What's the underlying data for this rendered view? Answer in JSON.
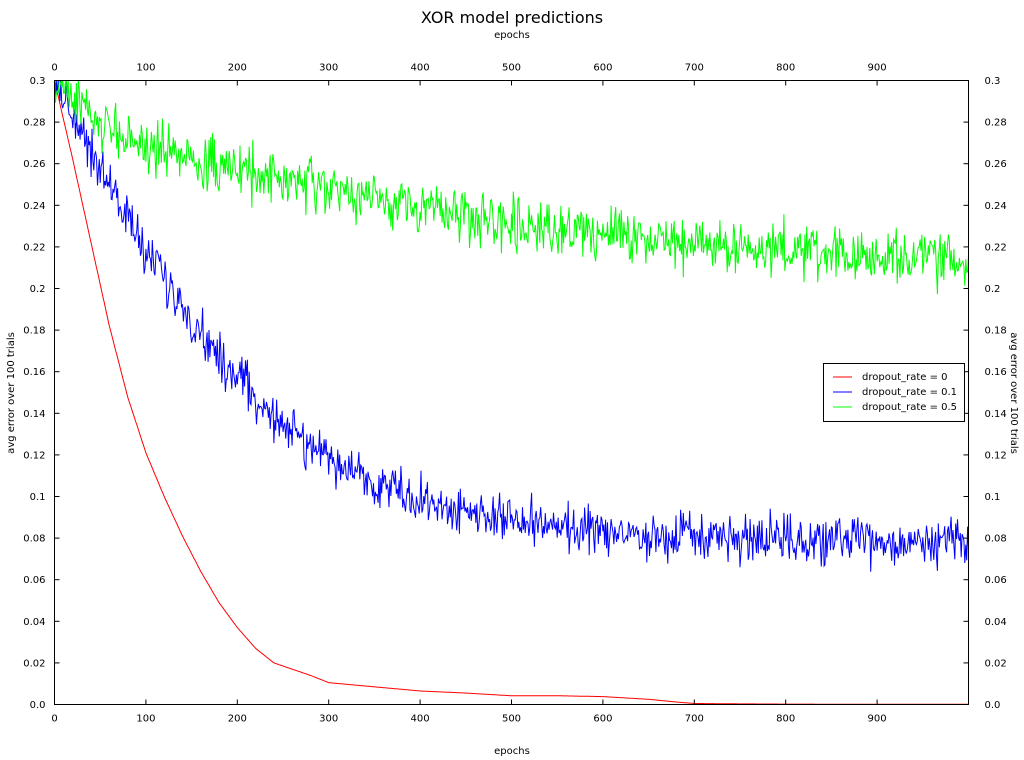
{
  "chart_data": {
    "type": "line",
    "title": "XOR model predictions",
    "xlabel_top": "epochs",
    "xlabel_bottom": "epochs",
    "ylabel_left": "avg error over 100 trials",
    "ylabel_right": "avg error over 100 trials",
    "xlim": [
      0,
      1000
    ],
    "ylim": [
      0,
      0.3
    ],
    "xticks": [
      0,
      100,
      200,
      300,
      400,
      500,
      600,
      700,
      800,
      900
    ],
    "xtick_labels": [
      "0",
      "100",
      "200",
      "300",
      "400",
      "500",
      "600",
      "700",
      "800",
      "900"
    ],
    "yticks": [
      0,
      0.02,
      0.04,
      0.06,
      0.08,
      0.1,
      0.12,
      0.14,
      0.16,
      0.18,
      0.2,
      0.22,
      0.24,
      0.26,
      0.28,
      0.3
    ],
    "ytick_labels": [
      "0.0",
      "0.02",
      "0.04",
      "0.06",
      "0.08",
      "0.1",
      "0.12",
      "0.14",
      "0.16",
      "0.18",
      "0.2",
      "0.22",
      "0.24",
      "0.26",
      "0.28",
      "0.3"
    ],
    "grid": false,
    "legend_position": "right",
    "series": [
      {
        "name": "dropout_rate = 0",
        "color": "#ff0000",
        "x": [
          0,
          20,
          40,
          60,
          80,
          100,
          120,
          140,
          160,
          180,
          200,
          220,
          240,
          260,
          280,
          300,
          350,
          400,
          450,
          500,
          550,
          600,
          650,
          680,
          700,
          750,
          800,
          900,
          1000
        ],
        "y": [
          0.3,
          0.262,
          0.222,
          0.182,
          0.148,
          0.121,
          0.1,
          0.081,
          0.064,
          0.049,
          0.037,
          0.027,
          0.02,
          0.017,
          0.014,
          0.0105,
          0.0085,
          0.0065,
          0.0055,
          0.0042,
          0.0042,
          0.0038,
          0.0025,
          0.0012,
          0.0005,
          0.0003,
          0.0002,
          0.0001,
          0.0001
        ]
      },
      {
        "name": "dropout_rate = 0.1",
        "color": "#0000ff",
        "noise": 0.008,
        "x": [
          0,
          25,
          50,
          75,
          100,
          125,
          150,
          175,
          200,
          225,
          250,
          275,
          300,
          325,
          350,
          375,
          400,
          450,
          500,
          550,
          600,
          650,
          700,
          750,
          800,
          850,
          900,
          1000
        ],
        "y": [
          0.3,
          0.28,
          0.258,
          0.238,
          0.218,
          0.2,
          0.185,
          0.17,
          0.157,
          0.145,
          0.135,
          0.126,
          0.118,
          0.112,
          0.107,
          0.103,
          0.098,
          0.093,
          0.088,
          0.085,
          0.083,
          0.081,
          0.08,
          0.079,
          0.079,
          0.078,
          0.078,
          0.078
        ]
      },
      {
        "name": "dropout_rate = 0.5",
        "color": "#00ff00",
        "noise": 0.009,
        "x": [
          0,
          25,
          50,
          75,
          100,
          150,
          200,
          250,
          300,
          350,
          400,
          450,
          500,
          550,
          600,
          650,
          700,
          750,
          800,
          850,
          900,
          1000
        ],
        "y": [
          0.3,
          0.29,
          0.278,
          0.274,
          0.269,
          0.262,
          0.257,
          0.252,
          0.247,
          0.243,
          0.24,
          0.236,
          0.232,
          0.229,
          0.227,
          0.224,
          0.222,
          0.22,
          0.218,
          0.216,
          0.214,
          0.213
        ]
      }
    ]
  }
}
